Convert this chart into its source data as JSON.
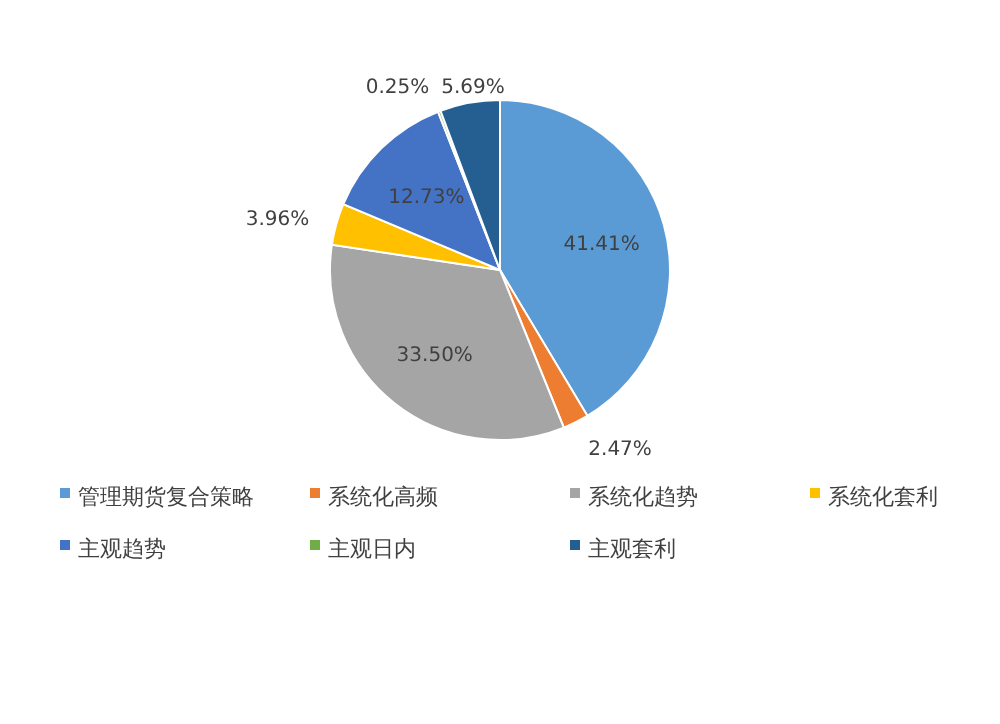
{
  "chart_data": {
    "type": "pie",
    "categories": [
      "管理期货复合策略",
      "系统化高频",
      "系统化趋势",
      "系统化套利",
      "主观趋势",
      "主观日内",
      "主观套利"
    ],
    "values": [
      41.41,
      2.47,
      33.5,
      3.96,
      12.73,
      0.25,
      5.69
    ],
    "colors": [
      "#5b9bd5",
      "#ed7d31",
      "#a5a5a5",
      "#ffc000",
      "#4472c4",
      "#70ad47",
      "#255e91"
    ],
    "value_labels": [
      "41.41%",
      "2.47%",
      "33.50%",
      "3.96%",
      "12.73%",
      "0.25%",
      "5.69%"
    ],
    "legend": "bottom"
  }
}
